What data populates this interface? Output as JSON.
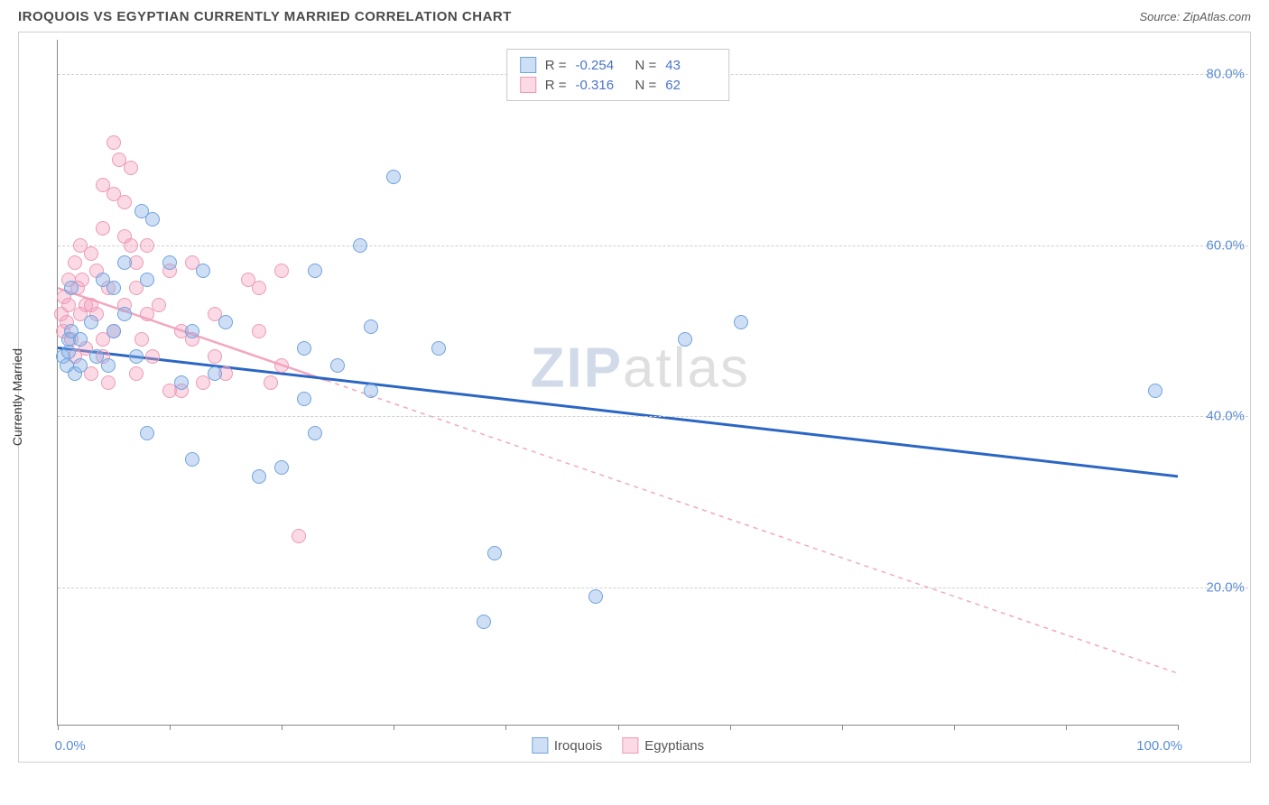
{
  "header": {
    "title": "IROQUOIS VS EGYPTIAN CURRENTLY MARRIED CORRELATION CHART",
    "source_prefix": "Source: ",
    "source_name": "ZipAtlas.com"
  },
  "ylabel": "Currently Married",
  "watermark": {
    "z": "ZIP",
    "rest": "atlas"
  },
  "axes": {
    "xmin": 0,
    "xmax": 100,
    "ymin": 4,
    "ymax": 84,
    "xticks": [
      0,
      10,
      20,
      30,
      40,
      50,
      60,
      70,
      80,
      90,
      100
    ],
    "xticklabels": {
      "0": "0.0%",
      "100": "100.0%"
    },
    "yticks": [
      20,
      40,
      60,
      80
    ],
    "yticklabels": {
      "20": "20.0%",
      "40": "40.0%",
      "60": "60.0%",
      "80": "80.0%"
    },
    "tick_color": "#5b8dd6",
    "grid_color": "#d0d0d0"
  },
  "series": {
    "iroquois": {
      "label": "Iroquois",
      "marker_fill": "rgba(133,176,231,0.40)",
      "marker_stroke": "#6fa3dd",
      "line_color": "#2b66c4",
      "line_dash": "none",
      "line_width": 3,
      "R": "-0.254",
      "N": "43",
      "trend": {
        "x1": 0,
        "y1": 48,
        "x2": 100,
        "y2": 33
      },
      "points": [
        [
          0.5,
          47
        ],
        [
          0.8,
          46
        ],
        [
          1,
          47.5
        ],
        [
          1,
          49
        ],
        [
          1.2,
          50
        ],
        [
          1.5,
          45
        ],
        [
          1.2,
          55
        ],
        [
          2,
          46
        ],
        [
          2,
          49
        ],
        [
          3,
          51
        ],
        [
          3.5,
          47
        ],
        [
          4,
          56
        ],
        [
          4.5,
          46
        ],
        [
          5,
          50
        ],
        [
          5,
          55
        ],
        [
          6,
          52
        ],
        [
          7,
          47
        ],
        [
          7.5,
          64
        ],
        [
          8,
          56
        ],
        [
          8.5,
          63
        ],
        [
          6,
          58
        ],
        [
          10,
          58
        ],
        [
          13,
          57
        ],
        [
          11,
          44
        ],
        [
          12,
          35
        ],
        [
          8,
          38
        ],
        [
          12,
          50
        ],
        [
          14,
          45
        ],
        [
          15,
          51
        ],
        [
          18,
          33
        ],
        [
          20,
          34
        ],
        [
          22,
          48
        ],
        [
          22,
          42
        ],
        [
          23,
          57
        ],
        [
          23,
          38
        ],
        [
          25,
          46
        ],
        [
          27,
          60
        ],
        [
          28,
          43
        ],
        [
          28,
          50.5
        ],
        [
          30,
          68
        ],
        [
          38,
          16
        ],
        [
          39,
          24
        ],
        [
          34,
          48
        ],
        [
          48,
          19
        ],
        [
          56,
          49
        ],
        [
          61,
          51
        ],
        [
          98,
          43
        ]
      ]
    },
    "egyptians": {
      "label": "Egyptians",
      "marker_fill": "rgba(245,160,190,0.40)",
      "marker_stroke": "#ec9bb7",
      "line_color": "#f2a8bf",
      "line_dash": "5,5",
      "line_width": 1.5,
      "R": "-0.316",
      "N": "62",
      "trend": {
        "x1": 0,
        "y1": 55,
        "x2": 100,
        "y2": 10
      },
      "trend_solid_until": 24,
      "points": [
        [
          0.3,
          52
        ],
        [
          0.5,
          50
        ],
        [
          0.6,
          54
        ],
        [
          0.8,
          51
        ],
        [
          1,
          56
        ],
        [
          1,
          53
        ],
        [
          1.2,
          49
        ],
        [
          1.5,
          58
        ],
        [
          1.5,
          47
        ],
        [
          1.8,
          55
        ],
        [
          2,
          52
        ],
        [
          2,
          60
        ],
        [
          2.2,
          56
        ],
        [
          2.5,
          53
        ],
        [
          2.5,
          48
        ],
        [
          3,
          59
        ],
        [
          3,
          45
        ],
        [
          3.5,
          57
        ],
        [
          3.5,
          52
        ],
        [
          4,
          47
        ],
        [
          4,
          62
        ],
        [
          4.5,
          55
        ],
        [
          4.5,
          44
        ],
        [
          5,
          50
        ],
        [
          5,
          72
        ],
        [
          5.5,
          70
        ],
        [
          6,
          53
        ],
        [
          6,
          61
        ],
        [
          6.5,
          69
        ],
        [
          7,
          55
        ],
        [
          4,
          67
        ],
        [
          5,
          66
        ],
        [
          6,
          65
        ],
        [
          7,
          58
        ],
        [
          7.5,
          49
        ],
        [
          8,
          52
        ],
        [
          8,
          60
        ],
        [
          8.5,
          47
        ],
        [
          7,
          45
        ],
        [
          9,
          53
        ],
        [
          10,
          43
        ],
        [
          10,
          57
        ],
        [
          11,
          50
        ],
        [
          6.5,
          60
        ],
        [
          11,
          43
        ],
        [
          12,
          49
        ],
        [
          12,
          58
        ],
        [
          13,
          44
        ],
        [
          14,
          47
        ],
        [
          14,
          52
        ],
        [
          15,
          45
        ],
        [
          17,
          56
        ],
        [
          18,
          50
        ],
        [
          18,
          55
        ],
        [
          4,
          49
        ],
        [
          3,
          53
        ],
        [
          19,
          44
        ],
        [
          20,
          57
        ],
        [
          21.5,
          26
        ],
        [
          20,
          46
        ]
      ]
    }
  },
  "legend_top": {
    "R_label": "R =",
    "N_label": "N ="
  }
}
